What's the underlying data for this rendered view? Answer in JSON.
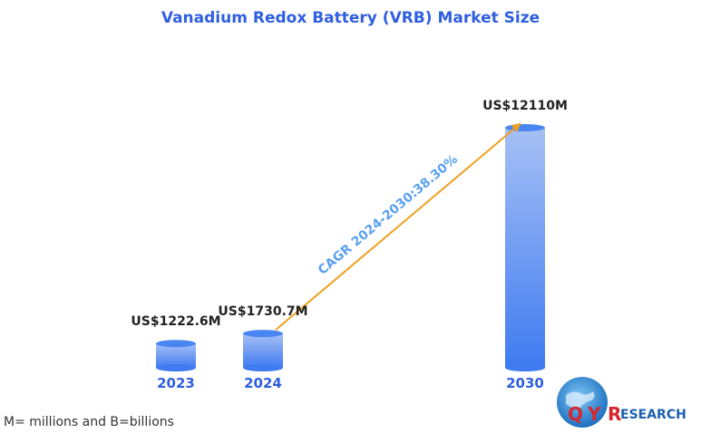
{
  "chart_data": {
    "type": "bar",
    "title": "Vanadium Redox Battery (VRB) Market Size",
    "categories": [
      "2023",
      "2024",
      "2030"
    ],
    "values": [
      1222.6,
      1730.7,
      12110
    ],
    "value_labels": [
      "US$1222.6M",
      "US$1730.7M",
      "US$12110M"
    ],
    "annotation": "CAGR 2024-2030:38.30%",
    "unit": "US$ M",
    "colors": {
      "title": "#2f5fe0",
      "bar_top": "#a7c0f5",
      "bar_bottom": "#3f7bf0",
      "arrow": "#f0a020",
      "axis_label": "#2f5fe0"
    }
  },
  "footnote": "M= millions and B=billions",
  "logo": {
    "q_letter": "Q",
    "y_letter": "Y",
    "r_letter": "R",
    "rest": "ESEARCH"
  }
}
